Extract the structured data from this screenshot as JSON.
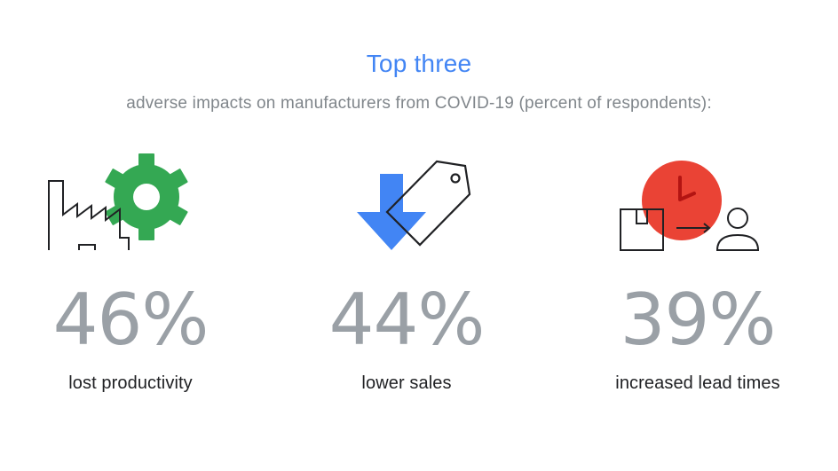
{
  "title": "Top three",
  "subtitle": "adverse impacts on manufacturers from COVID-19 (percent of respondents):",
  "colors": {
    "title": "#4285F4",
    "subtitle": "#80868B",
    "value": "#9AA0A6",
    "label": "#202124",
    "gear": "#34A853",
    "arrow": "#4285F4",
    "clock": "#EA4335"
  },
  "chart_data": {
    "type": "table",
    "title": "Top three",
    "subtitle": "adverse impacts on manufacturers from COVID-19 (percent of respondents):",
    "unit": "%",
    "items": [
      {
        "label": "lost productivity",
        "value": 46,
        "display": "46%",
        "icon": "factory-gear-icon"
      },
      {
        "label": "lower sales",
        "value": 44,
        "display": "44%",
        "icon": "price-tag-down-arrow-icon"
      },
      {
        "label": "increased lead times",
        "value": 39,
        "display": "39%",
        "icon": "clock-box-person-icon"
      }
    ]
  }
}
